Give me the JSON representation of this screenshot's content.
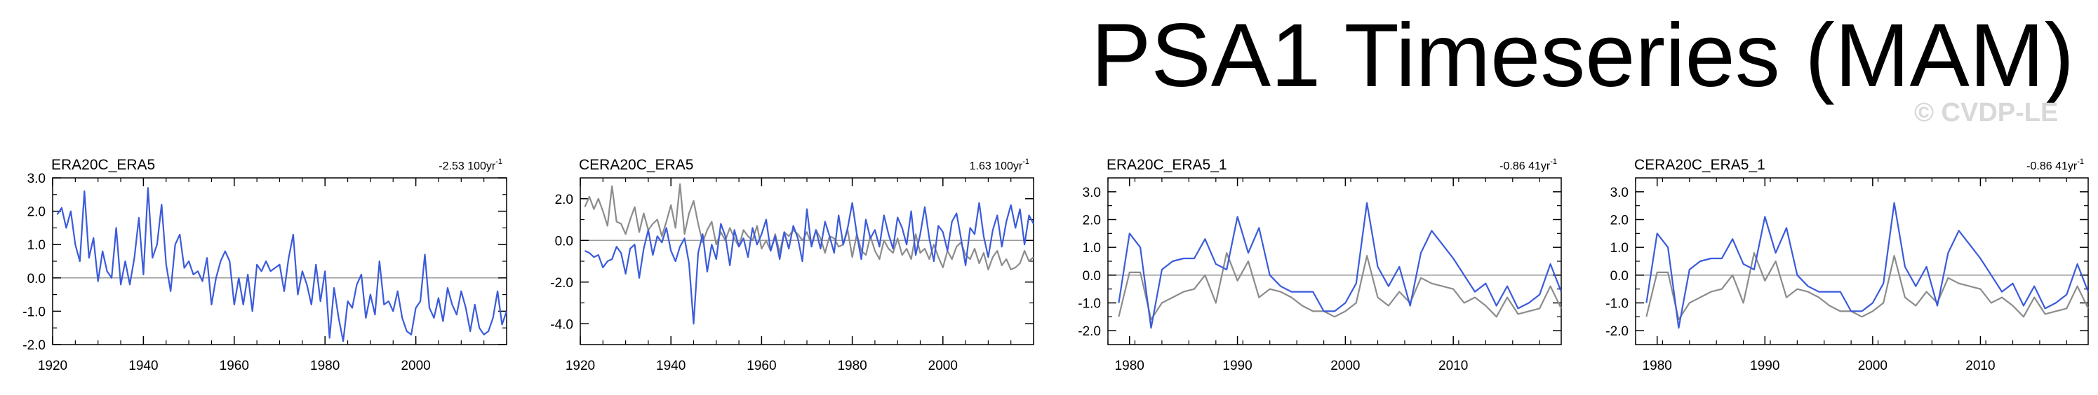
{
  "title": "PSA1 Timeseries (MAM)",
  "watermark": "© CVDP-LE",
  "colors": {
    "primary": "#3b5bdb",
    "secondary": "#8c8c8c",
    "zero_line": "#9a9a9a",
    "axis": "#000000"
  },
  "chart_data": [
    {
      "type": "line",
      "title": "ERA20C_ERA5",
      "trend": "-2.53 100yr",
      "trend_sup": "-1",
      "xlim": [
        1920,
        2020
      ],
      "ylim": [
        -2.0,
        3.0
      ],
      "xticks": [
        1920,
        1940,
        1960,
        1980,
        2000
      ],
      "yticks": [
        -2.0,
        -1.0,
        0.0,
        1.0,
        2.0,
        3.0
      ],
      "ytick_labels": [
        "-2.0",
        "-1.0",
        "0.0",
        "1.0",
        "2.0",
        "3.0"
      ],
      "x_start": 1921,
      "series": [
        {
          "name": "ERA20C_ERA5",
          "color": "#3b5bdb",
          "values": [
            1.9,
            2.1,
            1.5,
            2.0,
            1.0,
            0.5,
            2.6,
            0.6,
            1.2,
            -0.1,
            0.8,
            0.2,
            0.0,
            1.5,
            -0.2,
            0.5,
            -0.2,
            0.6,
            1.8,
            0.1,
            2.7,
            0.6,
            1.0,
            2.2,
            0.4,
            -0.4,
            1.0,
            1.3,
            0.3,
            0.5,
            0.1,
            0.2,
            -0.1,
            0.6,
            -0.8,
            0.0,
            0.5,
            0.8,
            0.5,
            -0.8,
            0.0,
            -0.8,
            0.1,
            -1.0,
            0.4,
            0.2,
            0.5,
            0.2,
            0.3,
            0.4,
            -0.4,
            0.6,
            1.3,
            -0.5,
            0.2,
            -0.2,
            -0.8,
            0.4,
            -0.7,
            0.2,
            -1.8,
            -0.3,
            -1.2,
            -1.9,
            -0.7,
            -0.9,
            -0.2,
            0.1,
            -1.2,
            -0.5,
            -1.1,
            0.5,
            -0.8,
            -0.7,
            -1.0,
            -0.4,
            -1.2,
            -1.6,
            -1.7,
            -0.9,
            -0.7,
            0.7,
            -0.9,
            -1.2,
            -0.6,
            -1.3,
            -0.3,
            -0.8,
            -1.1,
            -0.4,
            -0.9,
            -1.6,
            -0.8,
            -1.5,
            -1.7,
            -1.6,
            -1.2,
            -0.4,
            -1.4,
            -1.0
          ]
        }
      ]
    },
    {
      "type": "line",
      "title": "CERA20C_ERA5",
      "trend": "1.63 100yr",
      "trend_sup": "-1",
      "xlim": [
        1920,
        2020
      ],
      "ylim": [
        -5.0,
        3.0
      ],
      "xticks": [
        1920,
        1940,
        1960,
        1980,
        2000
      ],
      "yticks": [
        -4.0,
        -2.0,
        0.0,
        2.0
      ],
      "ytick_labels": [
        "-4.0",
        "-2.0",
        "0.0",
        "2.0"
      ],
      "x_start": 1921,
      "series": [
        {
          "name": "ERA20C_ERA5",
          "color": "#8c8c8c",
          "values": [
            1.6,
            2.1,
            1.5,
            2.0,
            1.4,
            0.7,
            2.6,
            0.9,
            0.8,
            0.3,
            1.0,
            1.6,
            0.4,
            1.3,
            0.5,
            0.8,
            1.0,
            0.2,
            0.9,
            1.7,
            0.6,
            2.7,
            0.3,
            1.3,
            1.9,
            0.8,
            -0.1,
            0.5,
            0.9,
            -0.2,
            0.4,
            0.0,
            0.6,
            0.1,
            -0.3,
            0.5,
            0.2,
            0.0,
            0.7,
            -0.4,
            0.0,
            -0.5,
            0.3,
            -0.6,
            0.4,
            0.2,
            0.5,
            0.3,
            0.0,
            0.4,
            -0.2,
            0.5,
            0.1,
            -0.6,
            0.2,
            0.1,
            -0.3,
            -0.2,
            0.5,
            -0.8,
            0.3,
            -0.5,
            -0.7,
            0.2,
            -0.5,
            -0.9,
            0.0,
            -0.4,
            -0.6,
            0.1,
            -0.7,
            -0.4,
            -0.9,
            0.3,
            -0.6,
            -0.4,
            -0.9,
            -0.2,
            -0.8,
            -1.3,
            -0.5,
            -0.9,
            -0.3,
            -0.1,
            -0.7,
            -0.9,
            -0.4,
            -1.1,
            -0.6,
            -1.4,
            -0.8,
            -0.5,
            -1.2,
            -0.9,
            -1.4,
            -1.3,
            -1.1,
            -0.5,
            -1.0,
            -0.8
          ]
        },
        {
          "name": "CERA20C_ERA5",
          "color": "#3b5bdb",
          "values": [
            -0.5,
            -0.6,
            -0.8,
            -0.7,
            -1.3,
            -1.0,
            -0.9,
            -0.3,
            -0.6,
            -1.6,
            -0.4,
            -0.2,
            -1.8,
            -0.4,
            0.5,
            -0.7,
            0.2,
            -0.1,
            0.6,
            -0.5,
            -1.0,
            -0.3,
            0.1,
            -1.1,
            -4.0,
            -0.6,
            0.3,
            -1.5,
            -0.2,
            -0.9,
            0.8,
            0.2,
            -1.2,
            0.5,
            -0.3,
            0.1,
            -0.8,
            0.6,
            -0.2,
            0.3,
            1.0,
            -0.5,
            0.2,
            -0.9,
            0.4,
            -0.4,
            0.7,
            0.1,
            -1.0,
            1.5,
            -0.3,
            0.5,
            -0.4,
            0.9,
            0.2,
            -0.6,
            1.2,
            -0.2,
            0.6,
            1.8,
            0.3,
            -0.9,
            1.0,
            0.1,
            0.5,
            -0.3,
            1.2,
            0.3,
            -0.4,
            1.1,
            0.6,
            -0.2,
            1.4,
            -0.7,
            0.3,
            1.6,
            0.1,
            -1.0,
            0.7,
            0.4,
            -0.5,
            0.9,
            1.3,
            0.1,
            -1.2,
            0.6,
            0.3,
            1.8,
            0.2,
            -0.8,
            0.5,
            1.2,
            -0.3,
            0.9,
            1.7,
            0.6,
            1.5,
            -0.2,
            1.2,
            0.8
          ]
        }
      ]
    },
    {
      "type": "line",
      "title": "ERA20C_ERA5_1",
      "trend": "-0.86 41yr",
      "trend_sup": "-1",
      "xlim": [
        1978,
        2020
      ],
      "ylim": [
        -2.5,
        3.5
      ],
      "xticks": [
        1980,
        1990,
        2000,
        2010
      ],
      "yticks": [
        -2.0,
        -1.0,
        0.0,
        1.0,
        2.0,
        3.0
      ],
      "ytick_labels": [
        "-2.0",
        "-1.0",
        "0.0",
        "1.0",
        "2.0",
        "3.0"
      ],
      "x_start": 1979,
      "series": [
        {
          "name": "ERA20C",
          "color": "#8c8c8c",
          "values": [
            -1.5,
            0.1,
            0.1,
            -1.6,
            -1.0,
            -0.8,
            -0.6,
            -0.5,
            0.0,
            -1.0,
            0.8,
            -0.2,
            0.5,
            -0.8,
            -0.5,
            -0.6,
            -0.8,
            -1.1,
            -1.3,
            -1.3,
            -1.5,
            -1.3,
            -1.0,
            0.7,
            -0.8,
            -1.1,
            -0.6,
            -1.0,
            -0.1,
            -0.3,
            -0.4,
            -0.5,
            -1.0,
            -0.8,
            -1.1,
            -1.5,
            -0.8,
            -1.4,
            -1.3,
            -1.2,
            -0.4,
            -1.2
          ]
        },
        {
          "name": "ERA5",
          "color": "#3b5bdb",
          "values": [
            -1.0,
            1.5,
            1.0,
            -1.9,
            0.2,
            0.5,
            0.6,
            0.6,
            1.3,
            0.4,
            0.2,
            2.1,
            0.8,
            1.7,
            0.0,
            -0.4,
            -0.6,
            -0.6,
            -0.6,
            -1.3,
            -1.3,
            -1.0,
            -0.3,
            2.6,
            0.3,
            -0.4,
            0.3,
            -1.1,
            0.8,
            1.6,
            1.1,
            0.6,
            0.0,
            -0.6,
            -0.3,
            -1.1,
            -0.4,
            -1.2,
            -1.0,
            -0.7,
            0.4,
            -0.6
          ]
        }
      ]
    },
    {
      "type": "line",
      "title": "CERA20C_ERA5_1",
      "trend": "-0.86 41yr",
      "trend_sup": "-1",
      "xlim": [
        1978,
        2020
      ],
      "ylim": [
        -2.5,
        3.5
      ],
      "xticks": [
        1980,
        1990,
        2000,
        2010
      ],
      "yticks": [
        -2.0,
        -1.0,
        0.0,
        1.0,
        2.0,
        3.0
      ],
      "ytick_labels": [
        "-2.0",
        "-1.0",
        "0.0",
        "1.0",
        "2.0",
        "3.0"
      ],
      "x_start": 1979,
      "series": [
        {
          "name": "CERA20C",
          "color": "#8c8c8c",
          "values": [
            -1.5,
            0.1,
            0.1,
            -1.6,
            -1.0,
            -0.8,
            -0.6,
            -0.5,
            0.0,
            -1.0,
            0.8,
            -0.2,
            0.5,
            -0.8,
            -0.5,
            -0.6,
            -0.8,
            -1.1,
            -1.3,
            -1.3,
            -1.5,
            -1.3,
            -1.0,
            0.7,
            -0.8,
            -1.1,
            -0.6,
            -1.0,
            -0.1,
            -0.3,
            -0.4,
            -0.5,
            -1.0,
            -0.8,
            -1.1,
            -1.5,
            -0.8,
            -1.4,
            -1.3,
            -1.2,
            -0.4,
            -1.2
          ]
        },
        {
          "name": "ERA5",
          "color": "#3b5bdb",
          "values": [
            -1.0,
            1.5,
            1.0,
            -1.9,
            0.2,
            0.5,
            0.6,
            0.6,
            1.3,
            0.4,
            0.2,
            2.1,
            0.8,
            1.7,
            0.0,
            -0.4,
            -0.6,
            -0.6,
            -0.6,
            -1.3,
            -1.3,
            -1.0,
            -0.3,
            2.6,
            0.3,
            -0.4,
            0.3,
            -1.1,
            0.8,
            1.6,
            1.1,
            0.6,
            0.0,
            -0.6,
            -0.3,
            -1.1,
            -0.4,
            -1.2,
            -1.0,
            -0.7,
            0.4,
            -0.6
          ]
        }
      ]
    }
  ]
}
